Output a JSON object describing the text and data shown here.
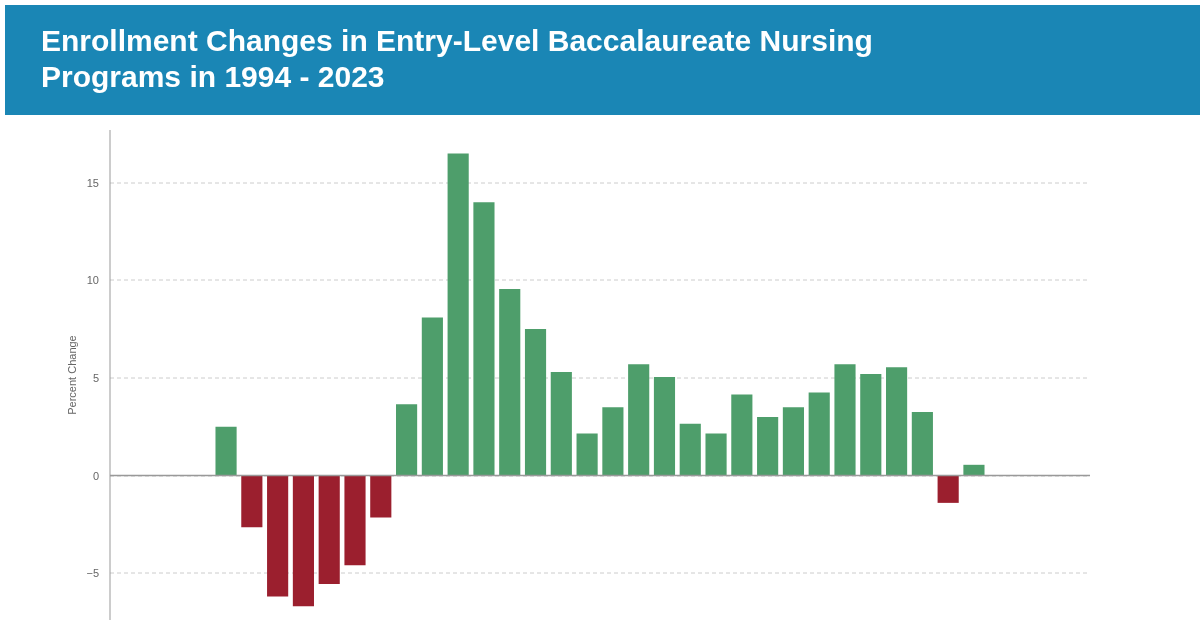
{
  "chart_data": {
    "type": "bar",
    "title": "Enrollment Changes in Entry-Level Baccalaureate Nursing Programs in 1994 - 2023",
    "ylabel": "Percent Change",
    "categories": [
      null,
      null,
      null,
      null,
      null,
      null,
      null,
      null,
      null,
      null,
      null,
      null,
      null,
      null,
      null,
      null,
      null,
      null,
      null,
      null,
      null,
      null,
      null,
      null,
      null,
      null,
      null,
      null,
      null,
      null,
      null,
      null,
      null,
      null,
      null,
      null,
      null,
      null
    ],
    "values": [
      null,
      null,
      null,
      null,
      2.5,
      -2.65,
      -6.2,
      -6.7,
      -5.55,
      -4.6,
      -2.15,
      3.65,
      8.1,
      16.5,
      14.0,
      9.55,
      7.5,
      5.3,
      2.15,
      3.5,
      5.7,
      5.05,
      2.65,
      2.15,
      4.15,
      3.0,
      3.5,
      4.25,
      5.7,
      5.2,
      5.55,
      3.25,
      -1.4,
      0.55,
      null,
      null,
      null,
      null
    ],
    "colors": [
      null,
      null,
      null,
      null,
      "#4e9e6b",
      "#9b1f2e",
      "#9b1f2e",
      "#9b1f2e",
      "#9b1f2e",
      "#9b1f2e",
      "#9b1f2e",
      "#4e9e6b",
      "#4e9e6b",
      "#4e9e6b",
      "#4e9e6b",
      "#4e9e6b",
      "#4e9e6b",
      "#4e9e6b",
      "#4e9e6b",
      "#4e9e6b",
      "#4e9e6b",
      "#4e9e6b",
      "#4e9e6b",
      "#4e9e6b",
      "#4e9e6b",
      "#4e9e6b",
      "#4e9e6b",
      "#4e9e6b",
      "#4e9e6b",
      "#4e9e6b",
      "#4e9e6b",
      "#4e9e6b",
      "#9b1f2e",
      "#4e9e6b",
      null,
      null,
      null,
      null
    ],
    "ylim": [
      -7.4,
      17.7
    ],
    "yticks": [
      -5,
      0,
      5,
      10,
      15
    ],
    "grid": "y",
    "ref_lines": [
      {
        "axis": "y",
        "value": 0,
        "color": "#999999"
      }
    ]
  }
}
